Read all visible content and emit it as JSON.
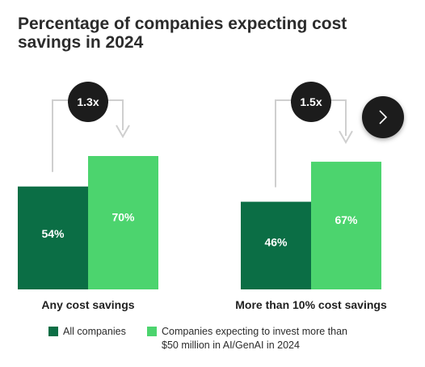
{
  "chart_data": {
    "type": "bar",
    "title": "Percentage of companies expecting cost savings in 2024",
    "categories": [
      "Any cost savings",
      "More than 10% cost savings"
    ],
    "series": [
      {
        "name": "All companies",
        "values": [
          54,
          46
        ],
        "labels": [
          "54%",
          "46%"
        ],
        "color": "#0b6e45"
      },
      {
        "name": "Companies expecting to invest more than $50 million in AI/GenAI in 2024",
        "values": [
          70,
          67
        ],
        "labels": [
          "70%",
          "67%"
        ],
        "color": "#4cd46e"
      }
    ],
    "annotations": [
      "1.3x",
      "1.5x"
    ],
    "ylim": [
      0,
      100
    ],
    "legend": "bottom"
  },
  "legend": {
    "item1": "All companies",
    "item2_line1": "Companies expecting to invest more than",
    "item2_line2": "$50 million in AI/GenAI in 2024"
  },
  "controls": {
    "next_icon": "chevron-right-icon"
  },
  "colors": {
    "dark_green": "#0b6e45",
    "light_green": "#4cd46e",
    "bracket": "#cfcfcf",
    "badge": "#1c1c1c"
  }
}
